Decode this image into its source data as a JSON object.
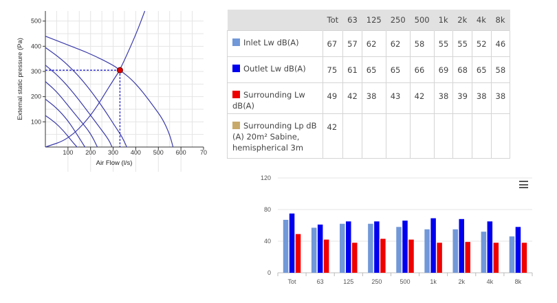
{
  "fan_chart": {
    "type": "line",
    "xlabel": "Air Flow (l/s)",
    "ylabel": "External static pressure (Pa)",
    "x_ticks": [
      "100",
      "200",
      "300",
      "400",
      "500",
      "600",
      "70"
    ],
    "y_ticks": [
      "100",
      "200",
      "300",
      "400",
      "500"
    ],
    "xlim": [
      0,
      700
    ],
    "ylim": [
      0,
      540
    ],
    "operating_point": {
      "x": 330,
      "y": 305
    },
    "fan_curves": [
      [
        [
          0,
          440
        ],
        [
          100,
          405
        ],
        [
          200,
          370
        ],
        [
          300,
          325
        ],
        [
          330,
          305
        ],
        [
          380,
          270
        ],
        [
          430,
          220
        ],
        [
          480,
          160
        ],
        [
          520,
          110
        ],
        [
          550,
          50
        ],
        [
          565,
          0
        ]
      ],
      [
        [
          0,
          395
        ],
        [
          70,
          350
        ],
        [
          140,
          290
        ],
        [
          200,
          225
        ],
        [
          260,
          150
        ],
        [
          310,
          80
        ],
        [
          340,
          40
        ],
        [
          360,
          0
        ]
      ],
      [
        [
          0,
          325
        ],
        [
          60,
          280
        ],
        [
          120,
          220
        ],
        [
          180,
          150
        ],
        [
          230,
          90
        ],
        [
          280,
          30
        ],
        [
          295,
          0
        ]
      ],
      [
        [
          0,
          260
        ],
        [
          50,
          220
        ],
        [
          100,
          165
        ],
        [
          150,
          110
        ],
        [
          200,
          55
        ],
        [
          230,
          0
        ]
      ],
      [
        [
          0,
          190
        ],
        [
          50,
          155
        ],
        [
          100,
          105
        ],
        [
          140,
          50
        ],
        [
          175,
          0
        ]
      ],
      [
        [
          0,
          125
        ],
        [
          40,
          100
        ],
        [
          80,
          65
        ],
        [
          120,
          20
        ],
        [
          140,
          0
        ]
      ]
    ],
    "system_curve": [
      [
        0,
        0
      ],
      [
        100,
        30
      ],
      [
        200,
        120
      ],
      [
        300,
        265
      ],
      [
        330,
        305
      ],
      [
        400,
        445
      ],
      [
        440,
        540
      ]
    ]
  },
  "sound_table": {
    "columns": [
      "Tot",
      "63",
      "125",
      "250",
      "500",
      "1k",
      "2k",
      "4k",
      "8k"
    ],
    "rows": [
      {
        "label": "Inlet Lw dB(A)",
        "color": "#7198d8",
        "values": [
          "67",
          "57",
          "62",
          "62",
          "58",
          "55",
          "55",
          "52",
          "46"
        ]
      },
      {
        "label": "Outlet Lw dB(A)",
        "color": "#0000ee",
        "values": [
          "75",
          "61",
          "65",
          "65",
          "66",
          "69",
          "68",
          "65",
          "58"
        ]
      },
      {
        "label": "Surrounding Lw dB(A)",
        "color": "#ee0000",
        "values": [
          "49",
          "42",
          "38",
          "43",
          "42",
          "38",
          "39",
          "38",
          "38"
        ]
      },
      {
        "label": "Surrounding Lp dB (A) 20m² Sabine, hemispherical 3m",
        "color": "#c8a96a",
        "values": [
          "42",
          "",
          "",
          "",
          "",
          "",
          "",
          "",
          ""
        ]
      }
    ]
  },
  "chart_data": {
    "type": "bar",
    "categories": [
      "Tot",
      "63",
      "125",
      "250",
      "500",
      "1k",
      "2k",
      "4k",
      "8k"
    ],
    "series": [
      {
        "color": "#7198d8",
        "values": [
          67,
          57,
          62,
          62,
          58,
          55,
          55,
          52,
          46
        ]
      },
      {
        "color": "#0000ee",
        "values": [
          75,
          61,
          65,
          65,
          66,
          69,
          68,
          65,
          58
        ]
      },
      {
        "color": "#ee0000",
        "values": [
          49,
          42,
          38,
          43,
          42,
          38,
          39,
          38,
          38
        ]
      }
    ],
    "y_ticks": [
      "0",
      "40",
      "80",
      "120"
    ],
    "ylim": [
      0,
      120
    ],
    "grid": true,
    "menu_icon": "hamburger-menu-icon"
  }
}
